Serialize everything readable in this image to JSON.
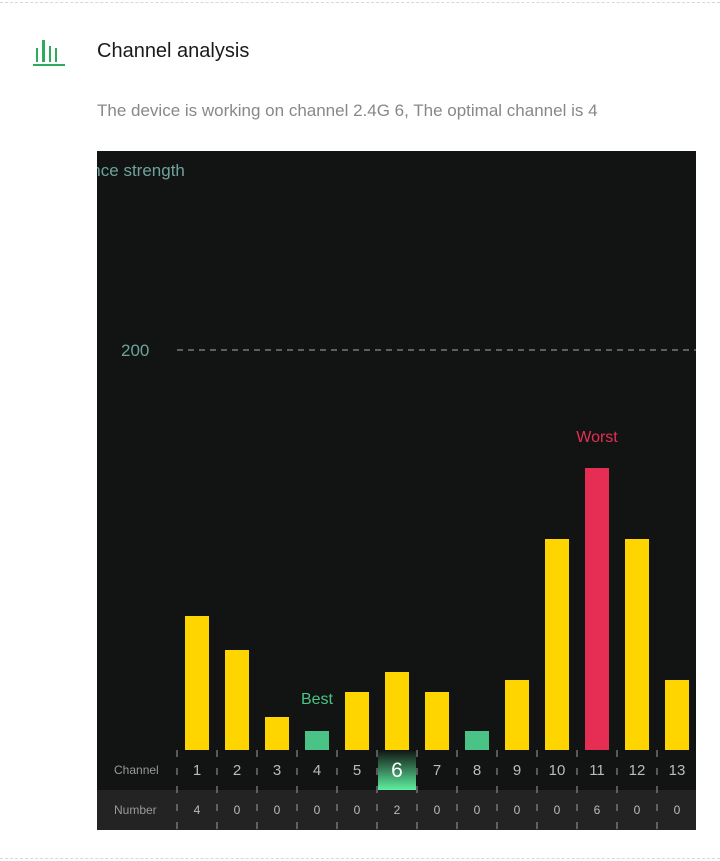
{
  "section": {
    "title": "Channel analysis",
    "icon": "bar-chart-icon",
    "description": "The device is working on channel 2.4G 6, The optimal channel is 4"
  },
  "colors": {
    "accent": "#2eaa5c",
    "bar": "#ffd500",
    "best": "#4cc386",
    "worst": "#e62e55",
    "background": "#111412"
  },
  "chart_data": {
    "type": "bar",
    "ylabel": "Interference strength",
    "ylim": [
      0,
      300
    ],
    "reference_line": {
      "value": 200,
      "label": "200"
    },
    "categories": [
      "1",
      "2",
      "3",
      "4",
      "5",
      "6",
      "7",
      "8",
      "9",
      "10",
      "11",
      "12",
      "13"
    ],
    "values": [
      67,
      50,
      16.5,
      9.5,
      29,
      39,
      29,
      9.5,
      35,
      105.5,
      141,
      105.5,
      35
    ],
    "best_channel": "4",
    "worst_channel": "11",
    "current_channel": "6",
    "best_label": "Best",
    "worst_label": "Worst",
    "row_labels": {
      "channel": "Channel",
      "number": "Number"
    },
    "numbers": [
      "4",
      "0",
      "0",
      "0",
      "0",
      "2",
      "0",
      "0",
      "0",
      "0",
      "6",
      "0",
      "0"
    ]
  }
}
